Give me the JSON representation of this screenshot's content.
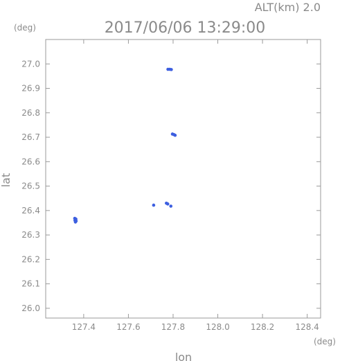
{
  "header": {
    "alt_text": "ALT(km) 2.0",
    "datetime": "2017/06/06 13:29:00"
  },
  "chart_data": {
    "type": "scatter",
    "title": "2017/06/06 13:29:00",
    "xlabel": "lon",
    "ylabel": "lat",
    "x_unit": "(deg)",
    "y_unit": "(deg)",
    "xlim": [
      127.23,
      128.46
    ],
    "ylim": [
      25.96,
      27.1
    ],
    "x_ticks": [
      "127.4",
      "127.6",
      "127.8",
      "128.0",
      "128.2",
      "128.4"
    ],
    "x_tick_values": [
      127.4,
      127.6,
      127.8,
      128.0,
      128.2,
      128.4
    ],
    "y_ticks": [
      "26.0",
      "26.1",
      "26.2",
      "26.3",
      "26.4",
      "26.5",
      "26.6",
      "26.7",
      "26.8",
      "26.9",
      "27.0"
    ],
    "y_tick_values": [
      26.0,
      26.1,
      26.2,
      26.3,
      26.4,
      26.5,
      26.6,
      26.7,
      26.8,
      26.9,
      27.0
    ],
    "grid": false,
    "point_color": "#3d5fe0",
    "series": [
      {
        "points": [
          {
            "x": 127.777,
            "y": 26.978
          },
          {
            "x": 127.785,
            "y": 26.978
          },
          {
            "x": 127.792,
            "y": 26.977
          },
          {
            "x": 127.797,
            "y": 26.713
          },
          {
            "x": 127.803,
            "y": 26.711
          },
          {
            "x": 127.809,
            "y": 26.708
          },
          {
            "x": 127.36,
            "y": 26.368
          },
          {
            "x": 127.365,
            "y": 26.365
          },
          {
            "x": 127.361,
            "y": 26.36
          },
          {
            "x": 127.366,
            "y": 26.357
          },
          {
            "x": 127.363,
            "y": 26.353
          },
          {
            "x": 127.713,
            "y": 26.422
          },
          {
            "x": 127.77,
            "y": 26.43
          },
          {
            "x": 127.776,
            "y": 26.427
          },
          {
            "x": 127.79,
            "y": 26.418
          }
        ]
      }
    ]
  }
}
